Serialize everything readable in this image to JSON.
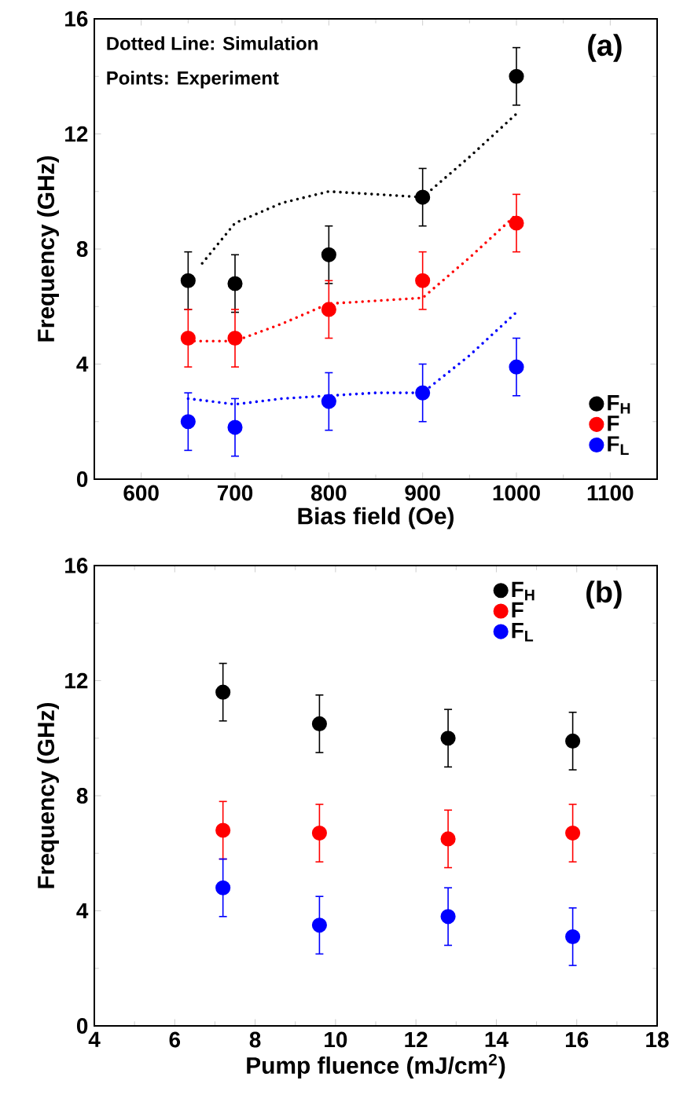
{
  "chart_data": [
    {
      "type": "scatter",
      "xlabel": "Bias field (Oe)",
      "ylabel": "Frequency (GHz)",
      "x": [
        650,
        700,
        800,
        900,
        1000
      ],
      "xlim": [
        550,
        1150
      ],
      "xticks": [
        600,
        700,
        800,
        900,
        1000,
        1100
      ],
      "ylim": [
        0,
        16
      ],
      "yticks": [
        0,
        4,
        8,
        12,
        16
      ],
      "legend": "bottom right",
      "annotations": [
        "Dotted Line: Simulation",
        "Points: Experiment",
        "(a)"
      ],
      "series": [
        {
          "name": "F$_{H}$",
          "marker": "circle",
          "color": "#000000",
          "values": [
            6.9,
            6.8,
            7.8,
            9.8,
            14.0
          ],
          "errors": [
            1,
            1,
            1,
            1,
            1
          ]
        },
        {
          "name": "F",
          "marker": "circle",
          "color": "#ff0000",
          "values": [
            4.9,
            4.9,
            5.9,
            6.9,
            8.9
          ],
          "errors": [
            1,
            1,
            1,
            1,
            1
          ]
        },
        {
          "name": "F$_{L}$",
          "marker": "circle",
          "color": "#0000ff",
          "values": [
            2.0,
            1.8,
            2.7,
            3.0,
            3.9
          ],
          "errors": [
            1,
            1,
            1,
            1,
            1
          ]
        },
        {
          "type": "line",
          "marker": "none",
          "line_style": "dotted",
          "color": "#000000",
          "x": [
            665,
            700,
            750,
            800,
            850,
            900,
            950,
            1000
          ],
          "values": [
            7.5,
            8.9,
            9.6,
            10.0,
            9.9,
            9.8,
            11.2,
            12.7
          ]
        },
        {
          "type": "line",
          "marker": "none",
          "line_style": "dotted",
          "color": "#ff0000",
          "x": [
            650,
            700,
            750,
            800,
            850,
            900,
            950,
            1000
          ],
          "values": [
            4.8,
            4.8,
            5.4,
            6.1,
            6.2,
            6.3,
            7.7,
            9.2
          ]
        },
        {
          "type": "line",
          "marker": "none",
          "line_style": "dotted",
          "color": "#0000ff",
          "x": [
            650,
            700,
            750,
            800,
            850,
            900,
            950,
            1000
          ],
          "values": [
            2.8,
            2.6,
            2.8,
            2.9,
            3.0,
            3.0,
            4.3,
            5.8
          ]
        }
      ]
    },
    {
      "type": "scatter",
      "xlabel": "Pump fluence (mJ/cm$^{2}$)",
      "ylabel": "Frequency (GHz)",
      "x": [
        7.2,
        9.6,
        12.8,
        15.9
      ],
      "xlim": [
        4,
        18
      ],
      "xticks": [
        4,
        6,
        8,
        10,
        12,
        14,
        16,
        18
      ],
      "ylim": [
        0,
        16
      ],
      "yticks": [
        0,
        4,
        8,
        12,
        16
      ],
      "legend": "top right",
      "annotations": [
        "(b)"
      ],
      "series": [
        {
          "name": "F$_{H}$",
          "marker": "circle",
          "color": "#000000",
          "values": [
            11.6,
            10.5,
            10.0,
            9.9
          ],
          "errors": [
            1,
            1,
            1,
            1
          ]
        },
        {
          "name": "F",
          "marker": "circle",
          "color": "#ff0000",
          "values": [
            6.8,
            6.7,
            6.5,
            6.7
          ],
          "errors": [
            1,
            1,
            1,
            1
          ]
        },
        {
          "name": "F$_{L}$",
          "marker": "circle",
          "color": "#0000ff",
          "values": [
            4.8,
            3.5,
            3.8,
            3.1
          ],
          "errors": [
            1,
            1,
            1,
            1
          ]
        }
      ]
    }
  ]
}
